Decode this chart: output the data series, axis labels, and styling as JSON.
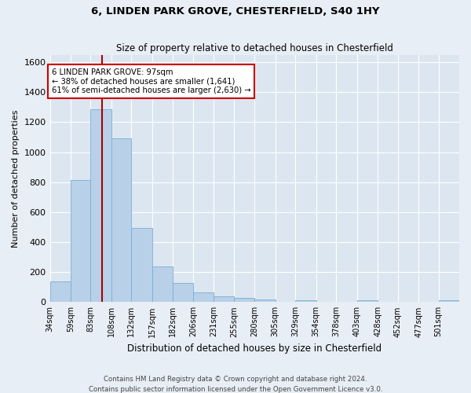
{
  "title": "6, LINDEN PARK GROVE, CHESTERFIELD, S40 1HY",
  "subtitle": "Size of property relative to detached houses in Chesterfield",
  "xlabel": "Distribution of detached houses by size in Chesterfield",
  "ylabel": "Number of detached properties",
  "footer_line1": "Contains HM Land Registry data © Crown copyright and database right 2024.",
  "footer_line2": "Contains public sector information licensed under the Open Government Licence v3.0.",
  "bin_edges": [
    34,
    59,
    83,
    108,
    132,
    157,
    182,
    206,
    231,
    255,
    280,
    305,
    329,
    354,
    378,
    403,
    428,
    452,
    477,
    501,
    526
  ],
  "bar_heights": [
    137,
    815,
    1285,
    1093,
    493,
    236,
    127,
    65,
    38,
    27,
    15,
    0,
    14,
    0,
    0,
    10,
    0,
    0,
    0,
    14
  ],
  "bar_color": "#b8d0e8",
  "bar_edge_color": "#7aafd4",
  "vline_x": 97,
  "vline_color": "#aa0000",
  "ylim": [
    0,
    1650
  ],
  "yticks": [
    0,
    200,
    400,
    600,
    800,
    1000,
    1200,
    1400,
    1600
  ],
  "annotation_line1": "6 LINDEN PARK GROVE: 97sqm",
  "annotation_line2": "← 38% of detached houses are smaller (1,641)",
  "annotation_line3": "61% of semi-detached houses are larger (2,630) →",
  "annotation_box_color": "#cc0000",
  "bg_color": "#e8eef5",
  "plot_bg_color": "#dce6f0",
  "grid_color": "#c5d3e0"
}
